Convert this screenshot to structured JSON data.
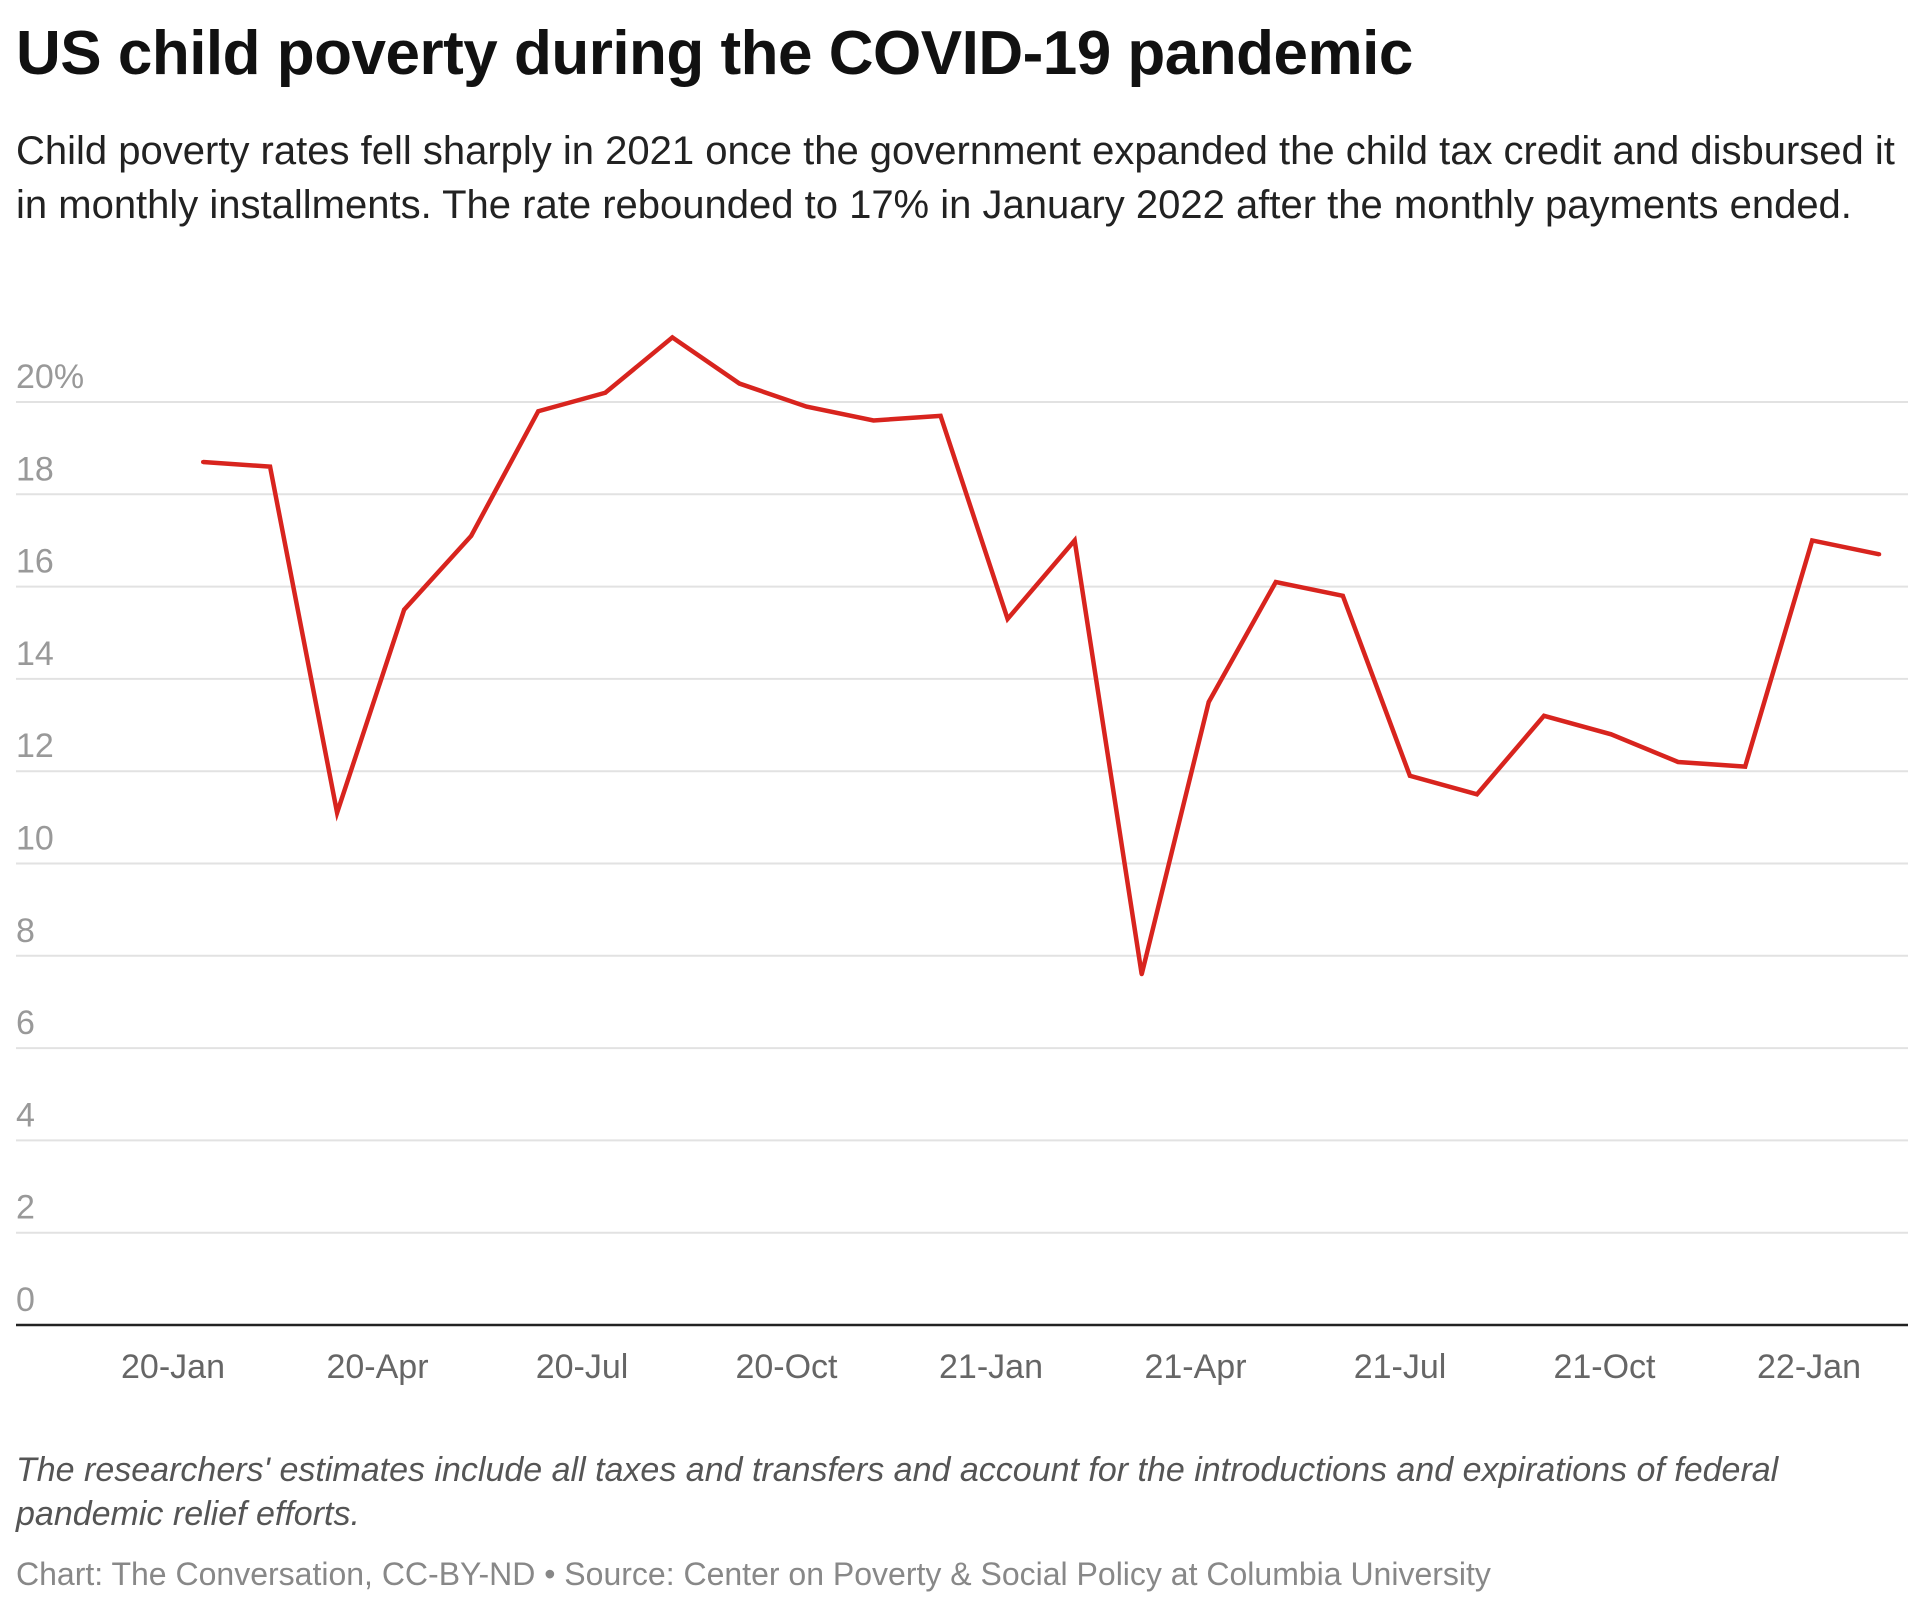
{
  "title": "US child poverty during the COVID-19 pandemic",
  "subtitle": "Child poverty rates fell sharply in 2021 once the government expanded the child tax credit and disbursed it in monthly installments. The rate rebounded to 17% in January 2022 after the monthly payments ended.",
  "note": "The researchers' estimates include all taxes and transfers and account for the introductions and expirations of federal pandemic relief efforts.",
  "source": "Chart: The Conversation, CC-BY-ND • Source: Center on Poverty & Social Policy at Columbia University",
  "chart_data": {
    "type": "line",
    "title": "US child poverty during the COVID-19 pandemic",
    "xlabel": "",
    "ylabel": "",
    "ylim": [
      0,
      20
    ],
    "grid": true,
    "line_color": "#d8241e",
    "y_ticks": [
      "0",
      "2",
      "4",
      "6",
      "8",
      "10",
      "12",
      "14",
      "16",
      "18",
      "20%"
    ],
    "x_ticks": [
      "20-Jan",
      "20-Apr",
      "20-Jul",
      "20-Oct",
      "21-Jan",
      "21-Apr",
      "21-Jul",
      "21-Oct",
      "22-Jan"
    ],
    "x": [
      "2020-01",
      "2020-02",
      "2020-03",
      "2020-04",
      "2020-05",
      "2020-06",
      "2020-07",
      "2020-08",
      "2020-09",
      "2020-10",
      "2020-11",
      "2020-12",
      "2021-01",
      "2021-02",
      "2021-03",
      "2021-04",
      "2021-05",
      "2021-06",
      "2021-07",
      "2021-08",
      "2021-09",
      "2021-10",
      "2021-11",
      "2021-12",
      "2022-01",
      "2022-02"
    ],
    "series": [
      {
        "values": [
          18.7,
          18.6,
          11.1,
          15.5,
          17.1,
          19.8,
          20.2,
          21.4,
          20.4,
          19.9,
          19.6,
          19.7,
          15.3,
          17.0,
          7.6,
          13.5,
          16.1,
          15.8,
          11.9,
          11.5,
          13.2,
          12.8,
          12.2,
          12.1,
          17.0,
          16.7
        ]
      }
    ]
  }
}
